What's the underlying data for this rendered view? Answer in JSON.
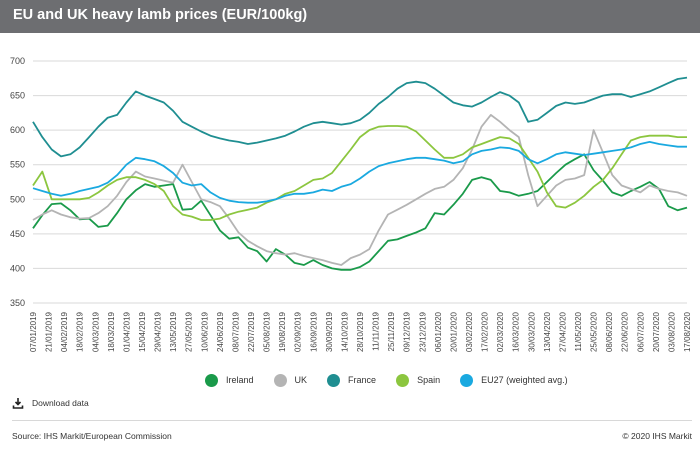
{
  "header": {
    "title": "EU and UK heavy lamb prices  (EUR/100kg)"
  },
  "download": {
    "label": "Download data",
    "icon": "download-icon"
  },
  "footer": {
    "source": "Source: IHS Markit/European Commission",
    "copyright": "© 2020 IHS Markit"
  },
  "chart_data": {
    "type": "line",
    "title": "EU and UK heavy lamb prices  (EUR/100kg)",
    "ylim": [
      350,
      700
    ],
    "yticks": [
      350,
      400,
      450,
      500,
      550,
      600,
      650,
      700
    ],
    "grid": "horizontal",
    "legend_position": "bottom",
    "x_tick_labels": [
      "07/01/2019",
      "21/01/2019",
      "04/02/2019",
      "18/02/2019",
      "04/03/2019",
      "18/03/2019",
      "01/04/2019",
      "15/04/2019",
      "29/04/2019",
      "13/05/2019",
      "27/05/2019",
      "10/06/2019",
      "24/06/2019",
      "08/07/2019",
      "22/07/2019",
      "05/08/2019",
      "19/08/2019",
      "02/09/2019",
      "16/09/2019",
      "30/09/2019",
      "14/10/2019",
      "28/10/2019",
      "11/11/2019",
      "25/11/2019",
      "09/12/2019",
      "23/12/2019",
      "06/01/2020",
      "20/01/2020",
      "03/02/2020",
      "17/02/2020",
      "02/03/2020",
      "16/03/2020",
      "30/03/2020",
      "13/04/2020",
      "27/04/2020",
      "11/05/2020",
      "25/05/2020",
      "08/06/2020",
      "22/06/2020",
      "06/07/2020",
      "20/07/2020",
      "03/08/2020",
      "17/08/2020"
    ],
    "series": [
      {
        "name": "Ireland",
        "color": "#1a9a4a",
        "values": [
          458,
          477,
          493,
          494,
          484,
          471,
          472,
          460,
          462,
          480,
          500,
          513,
          522,
          518,
          520,
          522,
          485,
          486,
          498,
          477,
          455,
          443,
          445,
          430,
          425,
          410,
          428,
          420,
          408,
          405,
          412,
          405,
          400,
          398,
          398,
          402,
          410,
          425,
          440,
          442,
          447,
          452,
          458,
          480,
          478,
          492,
          508,
          528,
          532,
          528,
          512,
          510,
          505,
          508,
          512,
          525,
          538,
          550,
          558,
          565,
          542,
          527,
          510,
          505,
          512,
          518,
          525,
          515,
          490,
          484,
          488
        ]
      },
      {
        "name": "UK",
        "color": "#b4b4b4",
        "values": [
          470,
          478,
          484,
          478,
          474,
          472,
          473,
          480,
          490,
          505,
          525,
          540,
          533,
          530,
          527,
          524,
          550,
          525,
          500,
          496,
          490,
          472,
          452,
          440,
          432,
          425,
          422,
          420,
          422,
          418,
          415,
          412,
          408,
          405,
          415,
          420,
          428,
          455,
          478,
          485,
          492,
          500,
          508,
          515,
          518,
          528,
          545,
          572,
          605,
          622,
          612,
          600,
          590,
          535,
          490,
          505,
          520,
          528,
          530,
          535,
          600,
          568,
          535,
          520,
          515,
          510,
          520,
          515,
          512,
          510,
          505
        ]
      },
      {
        "name": "France",
        "color": "#1f8e91",
        "values": [
          612,
          590,
          572,
          562,
          565,
          575,
          590,
          605,
          618,
          622,
          640,
          656,
          650,
          645,
          640,
          628,
          612,
          605,
          598,
          592,
          588,
          585,
          583,
          580,
          582,
          585,
          588,
          592,
          598,
          605,
          610,
          612,
          610,
          608,
          610,
          615,
          625,
          638,
          648,
          660,
          668,
          670,
          668,
          660,
          650,
          640,
          636,
          634,
          640,
          648,
          655,
          650,
          640,
          612,
          615,
          625,
          635,
          640,
          638,
          640,
          645,
          650,
          652,
          652,
          648,
          652,
          656,
          662,
          668,
          674,
          676
        ]
      },
      {
        "name": "Spain",
        "color": "#8cc63f",
        "values": [
          520,
          540,
          500,
          500,
          500,
          500,
          502,
          510,
          520,
          528,
          532,
          532,
          528,
          522,
          512,
          490,
          478,
          475,
          470,
          470,
          472,
          478,
          482,
          485,
          488,
          495,
          500,
          508,
          512,
          520,
          528,
          530,
          538,
          555,
          572,
          590,
          600,
          605,
          606,
          606,
          605,
          598,
          585,
          572,
          560,
          560,
          565,
          575,
          580,
          585,
          590,
          588,
          580,
          560,
          540,
          510,
          490,
          488,
          495,
          505,
          518,
          528,
          545,
          565,
          585,
          590,
          592,
          592,
          592,
          590,
          590
        ]
      },
      {
        "name": "EU27 (weighted avg.)",
        "color": "#1aa9e0",
        "values": [
          516,
          512,
          508,
          505,
          508,
          512,
          515,
          518,
          524,
          535,
          550,
          560,
          558,
          555,
          548,
          538,
          524,
          520,
          522,
          510,
          502,
          498,
          496,
          495,
          495,
          497,
          500,
          505,
          508,
          508,
          510,
          514,
          512,
          518,
          522,
          530,
          540,
          548,
          552,
          555,
          558,
          560,
          560,
          558,
          556,
          552,
          555,
          565,
          570,
          572,
          575,
          574,
          570,
          558,
          552,
          558,
          565,
          568,
          566,
          564,
          566,
          568,
          570,
          572,
          575,
          580,
          583,
          580,
          578,
          576,
          576
        ]
      }
    ]
  }
}
